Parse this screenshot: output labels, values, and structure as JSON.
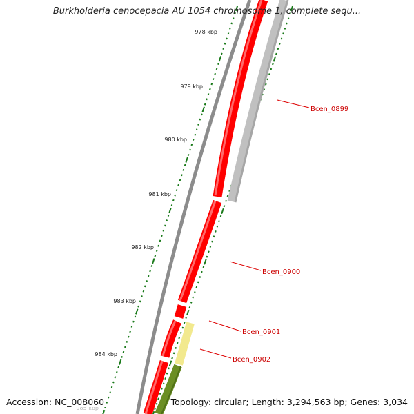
{
  "map": {
    "title": "Burkholderia cenocepacia AU 1054 chromosome 1, complete sequ...",
    "accession_label": "Accession: NC_008060",
    "summary_label": "Topology: circular; Length: 3,294,563 bp; Genes: 3,034",
    "ticks": [
      {
        "label": "978 kbp"
      },
      {
        "label": "979 kbp"
      },
      {
        "label": "980 kbp"
      },
      {
        "label": "981 kbp"
      },
      {
        "label": "982 kbp"
      },
      {
        "label": "983 kbp"
      },
      {
        "label": "984 kbp"
      },
      {
        "label": "985 kbp"
      }
    ],
    "genes": [
      {
        "label": "Bcen_0899"
      },
      {
        "label": "Bcen_0900"
      },
      {
        "label": "Bcen_0901"
      },
      {
        "label": "Bcen_0902"
      }
    ],
    "colors": {
      "backbone": "#8a8a8a",
      "cds_forward": "#ff0000",
      "cds_forward_light": "#ff6a6a",
      "cds_reverse_gray": "#c0c0c0",
      "cds_reverse_yellow": "#f2e98e",
      "cds_reverse_green": "#6b8e23",
      "tick": "#1a7a1a",
      "gene_label": "#cc0000",
      "leader_line": "#dd0000"
    }
  }
}
